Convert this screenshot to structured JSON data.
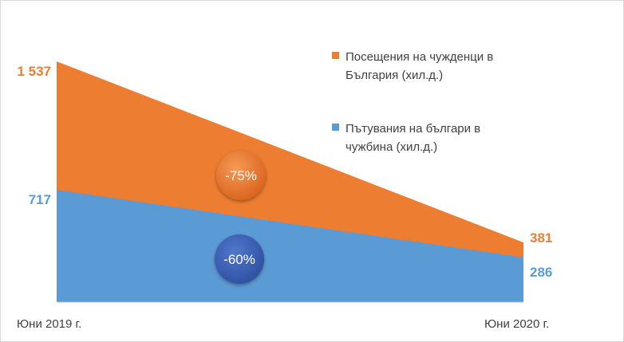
{
  "chart_data": {
    "type": "area",
    "categories": [
      "Юни 2019 г.",
      "Юни 2020 г."
    ],
    "series": [
      {
        "name_lines": [
          "Посещения на чужденци в",
          "България (хил.д.)"
        ],
        "values": [
          1537,
          381
        ],
        "value_labels": [
          "1 537",
          "381"
        ],
        "change_label": "-75%",
        "color": "#ED7D31",
        "badge_color": "#E8732A"
      },
      {
        "name_lines": [
          "Пътувания на българи в",
          "чужбина (хил.д.)"
        ],
        "values": [
          717,
          286
        ],
        "value_labels": [
          "717",
          "286"
        ],
        "change_label": "-60%",
        "color": "#5B9BD5",
        "badge_color": "#3E63B8"
      }
    ],
    "ylim": [
      0,
      1600
    ],
    "stacked": false,
    "grid": false,
    "legend_position": "top-right"
  }
}
